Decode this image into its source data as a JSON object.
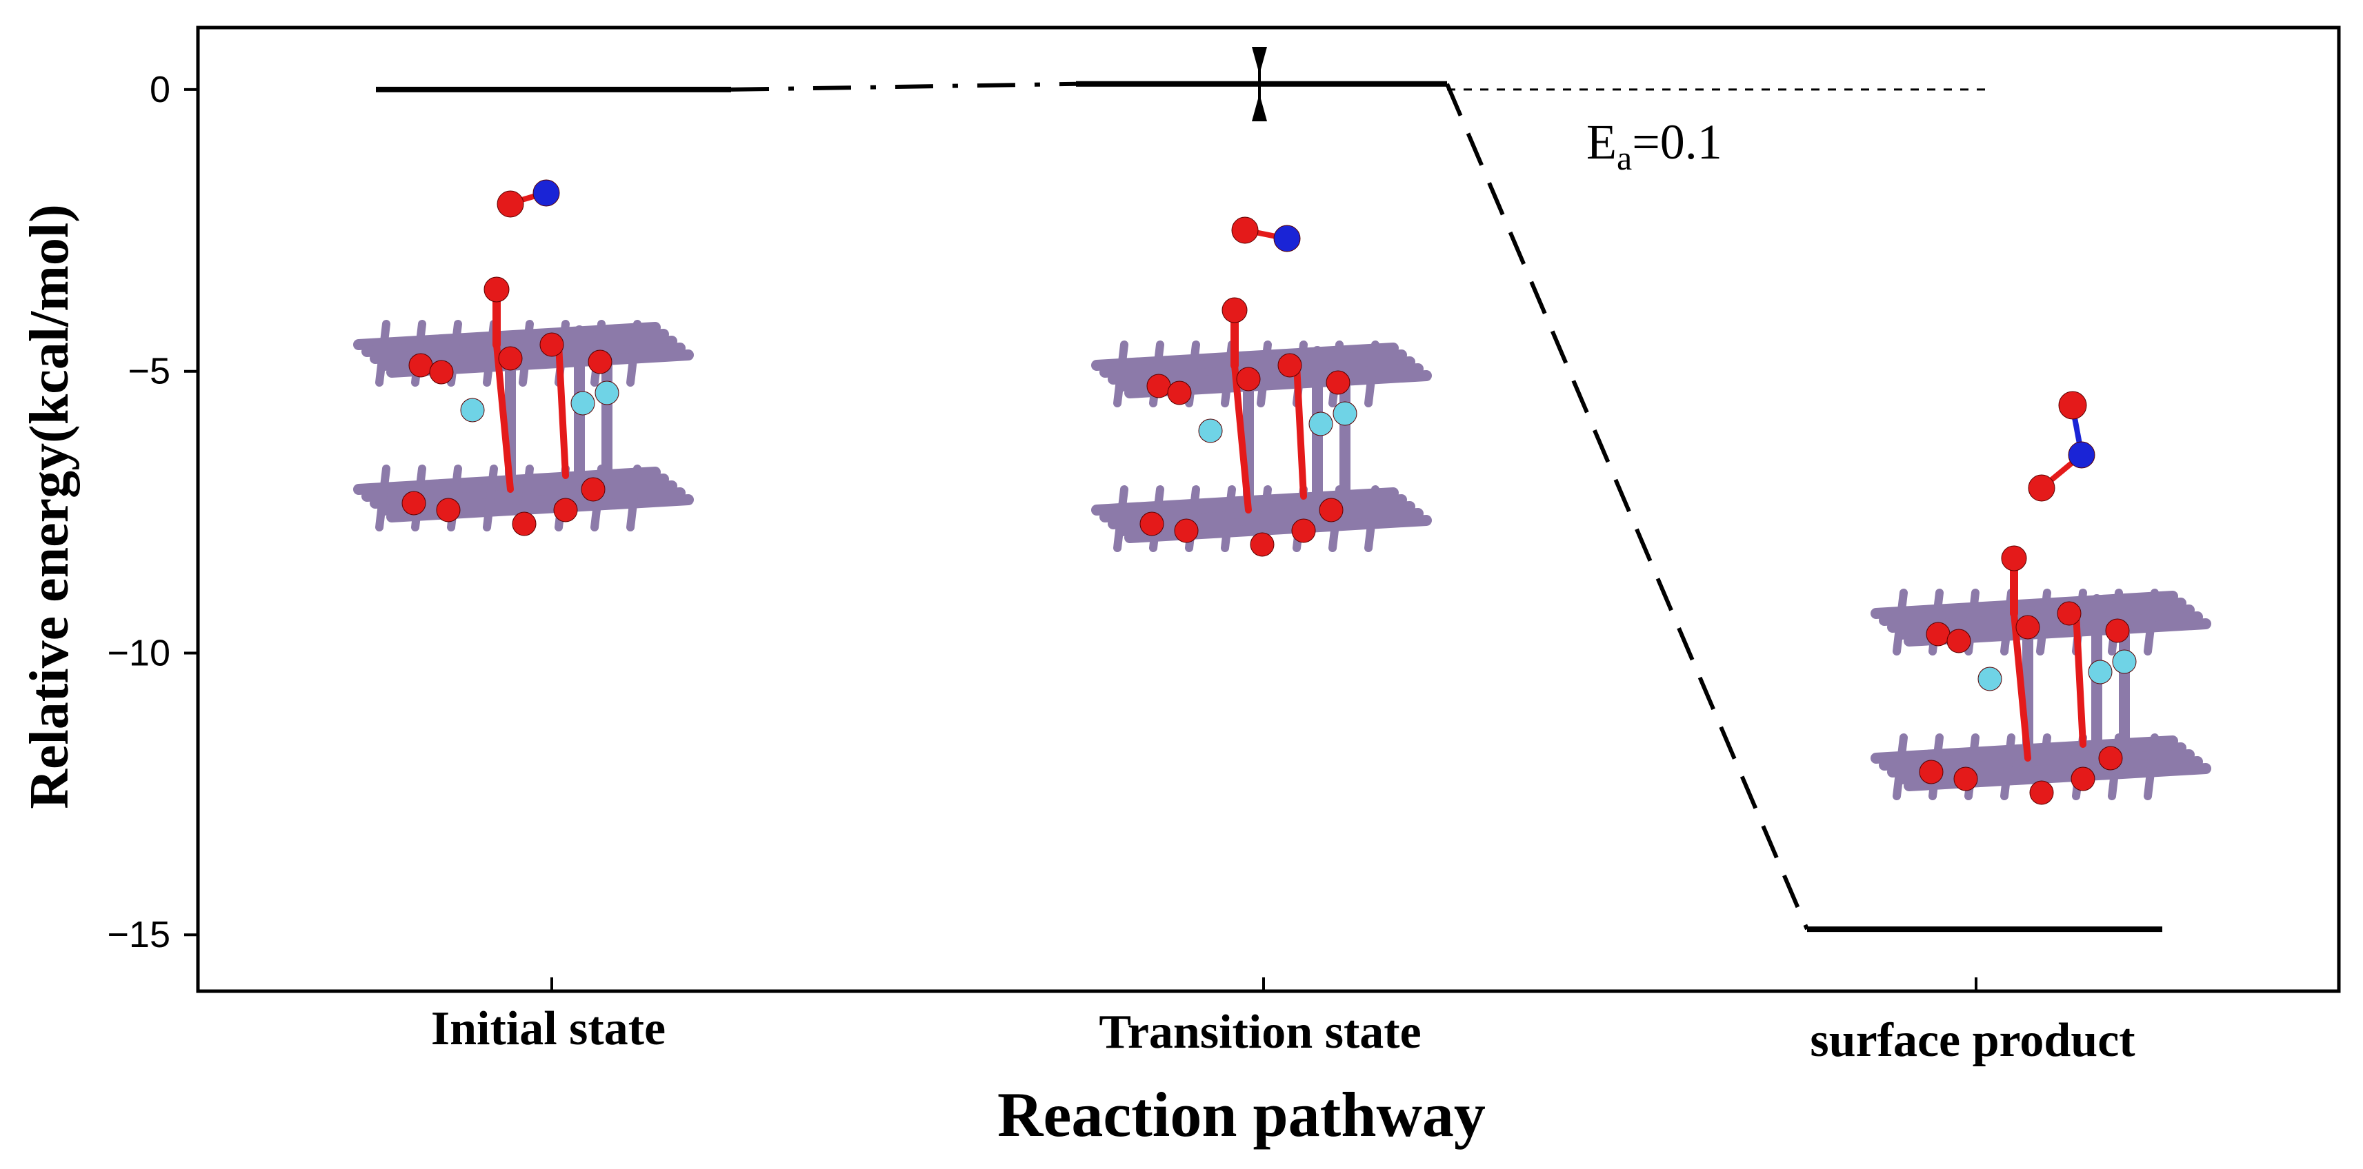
{
  "chart_data": {
    "type": "line",
    "xlabel": "Reaction pathway",
    "ylabel": "Relative energy(kcal/mol)",
    "categories": [
      "Initial state",
      "Transition state",
      "surface product"
    ],
    "values": [
      0,
      0.1,
      -14.9
    ],
    "ylim": [
      -16,
      1.1
    ],
    "yticks": [
      0,
      -5,
      -10,
      -15
    ],
    "ytick_labels": [
      "0",
      "−5",
      "−10",
      "−15"
    ],
    "annotation": {
      "symbol": "E",
      "subscript": "a",
      "text": "=0.1"
    },
    "grid": false,
    "legend": "none"
  },
  "molecule_images": [
    {
      "label": "initial-state-structure"
    },
    {
      "label": "transition-state-structure"
    },
    {
      "label": "surface-product-structure"
    }
  ],
  "colors": {
    "framework": "#8c7aa9",
    "oxygen": "#e41a1a",
    "nitrogen": "#1a24d6",
    "hydrogen": "#6fd3e6",
    "line": "#000000"
  }
}
